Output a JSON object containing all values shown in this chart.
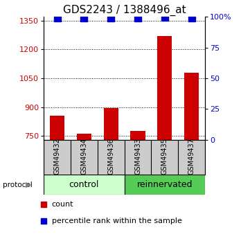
{
  "title": "GDS2243 / 1388496_at",
  "samples": [
    "GSM49432",
    "GSM49434",
    "GSM49436",
    "GSM49433",
    "GSM49435",
    "GSM49437"
  ],
  "counts": [
    855,
    762,
    895,
    775,
    1270,
    1080
  ],
  "percentile_ranks": [
    99,
    99,
    99,
    99,
    99.5,
    99
  ],
  "ylim_left": [
    730,
    1370
  ],
  "ylim_right": [
    0,
    100
  ],
  "yticks_left": [
    750,
    900,
    1050,
    1200,
    1350
  ],
  "yticks_right": [
    0,
    25,
    50,
    75,
    100
  ],
  "ytick_labels_right": [
    "0",
    "25",
    "50",
    "75",
    "100%"
  ],
  "bar_color": "#cc0000",
  "dot_color": "#0000cc",
  "control_color": "#ccffcc",
  "reinnervated_color": "#55cc55",
  "sample_box_color": "#cccccc",
  "protocol_label": "protocol",
  "control_label": "control",
  "reinnervated_label": "reinnervated",
  "legend_count_label": "count",
  "legend_pct_label": "percentile rank within the sample",
  "background_color": "#ffffff",
  "bar_width": 0.55,
  "dot_size": 45,
  "title_fontsize": 11,
  "tick_fontsize": 8,
  "sample_fontsize": 7,
  "proto_fontsize": 9,
  "legend_fontsize": 8
}
